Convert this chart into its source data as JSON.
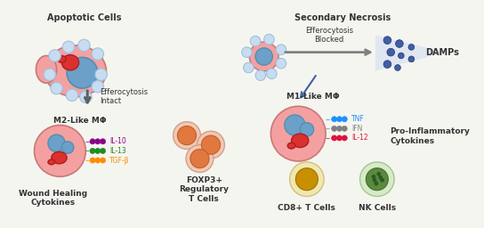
{
  "bg_color": "#f5f5f0",
  "title_apoptotic": "Apoptotic Cells",
  "title_secondary": "Secondary Necrosis",
  "label_efferocytosis_blocked": "Efferocytosis\nBlocked",
  "label_damps": "DAMPs",
  "label_efferocytosis_intact": "Efferocytosis\nIntact",
  "label_m2": "M2-Like MΦ",
  "label_m1": "M1-Like MΦ",
  "label_wound": "Wound Healing\nCytokines",
  "label_foxp3": "FOXP3+\nRegulatory\nT Cells",
  "label_pro_inflam": "Pro-Inflammatory\nCytokines",
  "label_cd8": "CD8+ T Cells",
  "label_nk": "NK Cells",
  "label_il10": "IL-10",
  "label_il13": "IL-13",
  "label_tgfb": "TGF-β",
  "label_tnf": "TNF",
  "label_ifn": "IFN",
  "label_il12": "IL-12",
  "color_il10": "#8B008B",
  "color_il13": "#228B22",
  "color_tgfb": "#FF8C00",
  "color_tnf": "#1E90FF",
  "color_ifn": "#808080",
  "color_il12": "#DC143C",
  "macrophage_fill": "#F4A0A0",
  "macrophage_edge": "#C87878",
  "nucleus_blue": "#6CA0C8",
  "nucleus_red": "#DC3030",
  "small_circle_fill": "#C8DCF0",
  "t_cell_outer": "#F4C8B0",
  "t_cell_inner": "#E07840",
  "cd8_outer": "#F0E8B0",
  "cd8_inner": "#C89000",
  "nk_outer": "#D8EAC8",
  "nk_inner": "#5A8A40",
  "nk_dot": "#2A5A20",
  "damp_dot_fill": "#4060A0",
  "damp_dot_edge": "#203080",
  "arrow_gray": "#606060",
  "arrow_blue": "#4060A0",
  "triangle_fill": "#C8D8F0"
}
